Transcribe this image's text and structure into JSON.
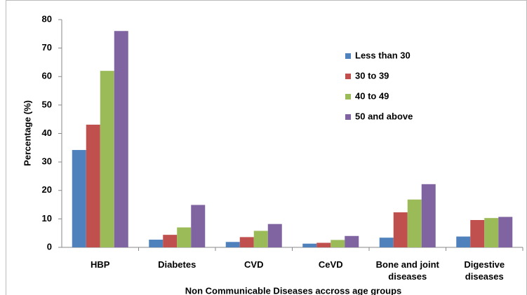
{
  "chart_data": {
    "type": "bar",
    "x_label": "Non Communicable Diseases accross age groups",
    "y_label": "Percentage (%)",
    "categories": [
      "HBP",
      "Diabetes",
      "CVD",
      "CeVD",
      "Bone and joint diseases",
      "Digestive diseases"
    ],
    "series": [
      {
        "name": "Less than 30",
        "color": "#4f81bd",
        "values": [
          34.2,
          2.7,
          1.9,
          1.3,
          3.4,
          3.8
        ]
      },
      {
        "name": "30 to 39",
        "color": "#c0504d",
        "values": [
          43.1,
          4.4,
          3.6,
          1.6,
          12.3,
          9.6
        ]
      },
      {
        "name": "40 to 49",
        "color": "#9bbb59",
        "values": [
          62,
          7,
          5.8,
          2.6,
          16.8,
          10.3
        ]
      },
      {
        "name": "50 and above",
        "color": "#8064a2",
        "values": [
          76,
          14.9,
          8.2,
          4,
          22.2,
          10.7
        ]
      }
    ],
    "ylim": [
      0,
      80
    ],
    "yticks": [
      0,
      10,
      20,
      30,
      40,
      50,
      60,
      70,
      80
    ],
    "legend": "upper right"
  }
}
